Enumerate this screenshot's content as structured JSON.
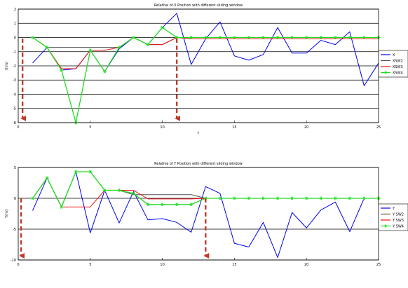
{
  "chart_data": [
    {
      "type": "line",
      "title": "Relative of X Position with different sliding window",
      "xlabel": "t",
      "ylabel": "X(m)",
      "xlim": [
        0,
        25
      ],
      "ylim": [
        -6,
        2
      ],
      "x_ticks": [
        "0",
        "5",
        "10",
        "15",
        "20",
        "25"
      ],
      "y_ticks": [
        "2",
        "1",
        "0",
        "-1",
        "-2",
        "-3",
        "-4",
        "-5",
        "-6"
      ],
      "grid": true,
      "legend_position": "right",
      "series": [
        {
          "name": "X",
          "color": "#0000ee",
          "marker": "none",
          "x": [
            1,
            2,
            3,
            4,
            5,
            6,
            7,
            8,
            9,
            10,
            11,
            12,
            13,
            14,
            15,
            16,
            17,
            18,
            19,
            20,
            21,
            22,
            23,
            24,
            25
          ],
          "values": [
            -1.8,
            -0.7,
            -2.3,
            -2.2,
            -0.9,
            -2.4,
            -0.8,
            0.0,
            -0.5,
            0.7,
            1.7,
            -1.9,
            -0.1,
            1.1,
            -1.3,
            -1.6,
            -1.2,
            0.7,
            -1.1,
            -1.1,
            -0.2,
            -0.5,
            0.4,
            -3.4,
            -1.8
          ]
        },
        {
          "name": "XSW2",
          "color": "#505050",
          "marker": "none",
          "x": [
            1,
            2,
            3,
            4,
            5,
            6,
            7,
            8,
            9,
            10,
            11,
            12,
            13,
            14,
            15,
            16,
            17,
            18,
            19,
            20,
            21,
            22,
            23,
            24,
            25
          ],
          "values": [
            0.0,
            -0.7,
            -0.7,
            -0.7,
            -0.7,
            -0.7,
            -0.7,
            0.0,
            -0.5,
            -0.5,
            0.0,
            -0.1,
            -0.1,
            -0.1,
            -0.1,
            -0.1,
            -0.1,
            -0.1,
            -0.1,
            -0.1,
            -0.1,
            -0.1,
            -0.1,
            -0.1,
            -0.1
          ]
        },
        {
          "name": "XSW3",
          "color": "#ee1111",
          "marker": "none",
          "x": [
            1,
            2,
            3,
            4,
            5,
            6,
            7,
            8,
            9,
            10,
            11,
            12,
            13,
            14,
            15,
            16,
            17,
            18,
            19,
            20,
            21,
            22,
            23,
            24,
            25
          ],
          "values": [
            0.0,
            -0.7,
            -2.2,
            -2.2,
            -0.9,
            -0.9,
            -0.7,
            0.0,
            -0.5,
            -0.5,
            0.0,
            -0.1,
            -0.1,
            -0.1,
            -0.1,
            -0.1,
            -0.1,
            -0.1,
            -0.1,
            -0.1,
            -0.1,
            -0.1,
            -0.1,
            -0.1,
            -0.1
          ]
        },
        {
          "name": "XSW4",
          "color": "#22dd22",
          "marker": "star",
          "x": [
            1,
            2,
            3,
            4,
            5,
            6,
            7,
            8,
            9,
            10,
            11,
            12,
            13,
            14,
            15,
            16,
            17,
            18,
            19,
            20,
            21,
            22,
            23,
            24,
            25
          ],
          "values": [
            0.0,
            -0.7,
            -2.3,
            -6.0,
            -0.9,
            -2.4,
            -0.7,
            0.0,
            -0.5,
            0.7,
            0.0,
            0.0,
            0.0,
            0.0,
            0.0,
            0.0,
            0.0,
            0.0,
            0.0,
            0.0,
            0.0,
            0.0,
            0.0,
            0.0,
            0.0
          ]
        }
      ],
      "annotations": [
        {
          "type": "dashed-arrow",
          "color": "#c0392b",
          "x": 0.3
        },
        {
          "type": "dashed-arrow",
          "color": "#c0392b",
          "x": 11.0
        }
      ]
    },
    {
      "type": "line",
      "title": "Relative of Y Position with different sliding window",
      "xlabel": "",
      "ylabel": "Y(m)",
      "xlim": [
        0,
        25
      ],
      "ylim": [
        -10,
        5
      ],
      "x_ticks": [
        "0",
        "5",
        "10",
        "15",
        "20",
        "25"
      ],
      "y_ticks": [
        "5",
        "0",
        "-5",
        "-10"
      ],
      "grid": true,
      "legend_position": "right",
      "series": [
        {
          "name": "Y",
          "color": "#0000ee",
          "marker": "none",
          "x": [
            1,
            2,
            3,
            4,
            5,
            6,
            7,
            8,
            9,
            10,
            11,
            12,
            13,
            14,
            15,
            16,
            17,
            18,
            19,
            20,
            21,
            22,
            23,
            24,
            25
          ],
          "values": [
            -2.0,
            3.3,
            -1.4,
            4.3,
            -5.6,
            1.3,
            -4.0,
            1.1,
            -3.5,
            -3.3,
            -3.9,
            -5.5,
            1.9,
            0.8,
            -7.3,
            -7.9,
            -3.9,
            -9.6,
            -2.3,
            -4.8,
            -1.9,
            -0.6,
            -5.4,
            0.0,
            0.0
          ]
        },
        {
          "name": "Y SW2",
          "color": "#505050",
          "marker": "none",
          "x": [
            1,
            2,
            3,
            4,
            5,
            6,
            7,
            8,
            9,
            10,
            11,
            12,
            13,
            14,
            15,
            16,
            17,
            18,
            19,
            20,
            21,
            22,
            23,
            24,
            25
          ],
          "values": [
            0.0,
            3.3,
            -1.4,
            4.3,
            4.3,
            1.3,
            1.3,
            0.6,
            0.6,
            0.6,
            0.6,
            0.6,
            0.0,
            0.0,
            0.0,
            0.0,
            0.0,
            0.0,
            0.0,
            0.0,
            0.0,
            0.0,
            0.0,
            0.0,
            0.0
          ]
        },
        {
          "name": "Y SW3",
          "color": "#ee1111",
          "marker": "none",
          "x": [
            1,
            2,
            3,
            4,
            5,
            6,
            7,
            8,
            9,
            10,
            11,
            12,
            13,
            14,
            15,
            16,
            17,
            18,
            19,
            20,
            21,
            22,
            23,
            24,
            25
          ],
          "values": [
            0.0,
            3.3,
            -1.4,
            -1.4,
            -1.4,
            1.3,
            1.3,
            1.3,
            -0.1,
            -0.1,
            -0.1,
            -0.1,
            0.0,
            0.0,
            0.0,
            0.0,
            0.0,
            0.0,
            0.0,
            0.0,
            0.0,
            0.0,
            0.0,
            0.0,
            0.0
          ]
        },
        {
          "name": "Y SW4",
          "color": "#22dd22",
          "marker": "star",
          "x": [
            1,
            2,
            3,
            4,
            5,
            6,
            7,
            8,
            9,
            10,
            11,
            12,
            13,
            14,
            15,
            16,
            17,
            18,
            19,
            20,
            21,
            22,
            23,
            24,
            25
          ],
          "values": [
            0.0,
            3.3,
            -1.4,
            4.3,
            4.3,
            1.3,
            1.3,
            0.8,
            -1.0,
            -1.0,
            -1.0,
            -1.0,
            0.0,
            0.0,
            0.0,
            0.0,
            0.0,
            0.0,
            0.0,
            0.0,
            0.0,
            0.0,
            0.0,
            0.0,
            0.0
          ]
        }
      ],
      "annotations": [
        {
          "type": "dashed-arrow",
          "color": "#c0392b",
          "x": 0.2
        },
        {
          "type": "dashed-arrow",
          "color": "#c0392b",
          "x": 13.0
        }
      ]
    }
  ]
}
